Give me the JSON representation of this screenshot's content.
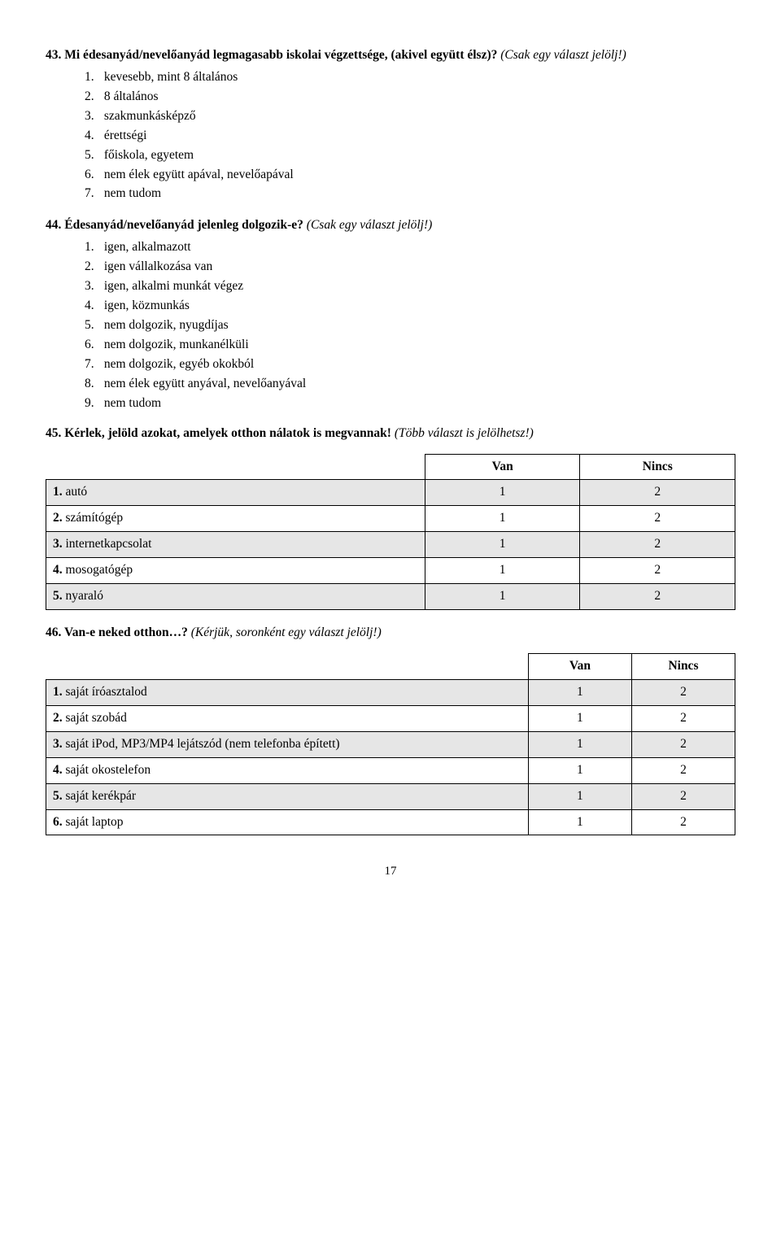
{
  "q43": {
    "title_a": "43.  Mi édesanyád/nevelőanyád legmagasabb iskolai végzettsége, (akivel együtt élsz)?",
    "hint": "(Csak egy választ jelölj!)",
    "options": [
      "kevesebb, mint 8 általános",
      "8 általános",
      "szakmunkásképző",
      "érettségi",
      "főiskola, egyetem",
      "nem élek együtt apával, nevelőapával",
      "nem tudom"
    ]
  },
  "q44": {
    "title": "44. Édesanyád/nevelőanyád jelenleg dolgozik-e?",
    "hint": "(Csak egy választ jelölj!)",
    "options": [
      "igen, alkalmazott",
      "igen vállalkozása van",
      "igen, alkalmi munkát végez",
      "igen, közmunkás",
      "nem dolgozik, nyugdíjas",
      "nem dolgozik, munkanélküli",
      "nem dolgozik, egyéb okokból",
      "nem élek együtt anyával, nevelőanyával",
      "nem tudom"
    ]
  },
  "q45": {
    "bold_a": "45.  Kérlek,  jelöld  azokat,  amelyek  otthon  nálatok  is  megvannak!",
    "hint": "(Több  választ  is jelölhetsz!)",
    "col_van": "Van",
    "col_nincs": "Nincs",
    "v1": "1",
    "v2": "2",
    "rows": [
      {
        "num": "1.",
        "label": "autó"
      },
      {
        "num": "2.",
        "label": "számítógép"
      },
      {
        "num": "3.",
        "label": "internetkapcsolat"
      },
      {
        "num": "4.",
        "label": "mosogatógép"
      },
      {
        "num": "5.",
        "label": "nyaraló"
      }
    ]
  },
  "q46": {
    "bold": "46. Van-e neked otthon…?",
    "hint": "(Kérjük, soronként egy választ jelölj!)",
    "col_van": "Van",
    "col_nincs": "Nincs",
    "v1": "1",
    "v2": "2",
    "rows": [
      {
        "num": "1.",
        "label": "saját íróasztalod"
      },
      {
        "num": "2.",
        "label": "saját szobád"
      },
      {
        "num": "3.",
        "label": "saját iPod, MP3/MP4 lejátszód (nem telefonba épített)"
      },
      {
        "num": "4.",
        "label": "saját okostelefon"
      },
      {
        "num": "5.",
        "label": "saját kerékpár"
      },
      {
        "num": "6.",
        "label": "saját laptop"
      }
    ]
  },
  "page_number": "17",
  "table_style": {
    "shade_color": "#e6e6e6",
    "border_color": "#000000"
  }
}
